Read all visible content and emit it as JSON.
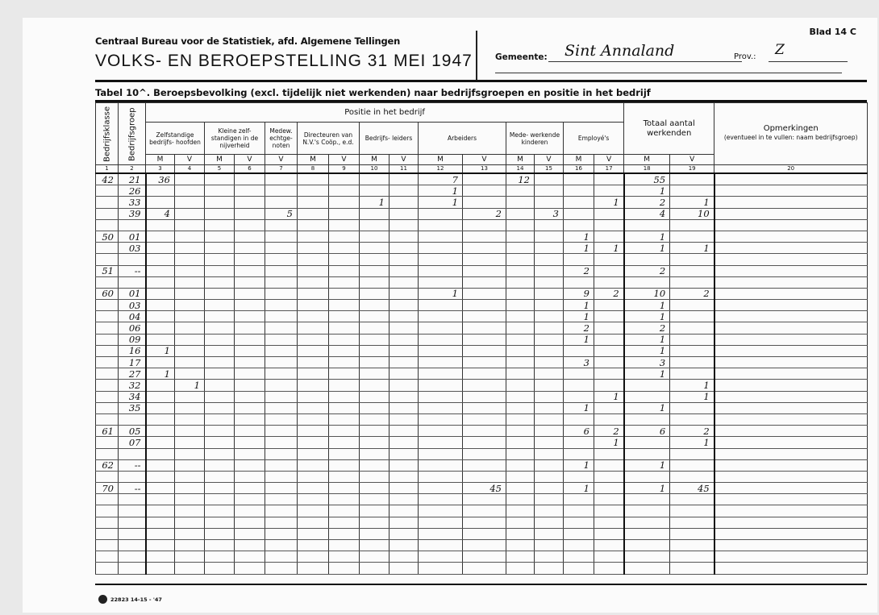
{
  "header": {
    "organisation": "Centraal Bureau voor de Statistiek, afd. Algemene Tellingen",
    "title": "VOLKS- EN BEROEPSTELLING 31 MEI 1947",
    "sheet": "Blad 14 C",
    "gemeente_label": "Gemeente:",
    "gemeente_value": "Sint Annaland",
    "prov_label": "Prov.:",
    "prov_value": "Z",
    "table_title": "Tabel 10^.  Beroepsbevolking (excl. tijdelijk niet werkenden) naar bedrijfsgroepen en positie in het bedrijf"
  },
  "columns": {
    "bedrijfsklasse": "Bedrijfsklasse",
    "bedrijfsgroep": "Bedrijfsgroep",
    "positie": "Positie in het bedrijf",
    "groups": [
      "Zelfstandige bedrijfs- hoofden",
      "Kleine zelf- standigen in de nijverheid",
      "Medew. echtge- noten",
      "Directeuren van N.V.'s Coöp., e.d.",
      "Bedrijfs- leiders",
      "Arbeiders",
      "Mede- werkende kinderen",
      "Employé's"
    ],
    "totaal": "Totaal aantal werkenden",
    "opmerkingen": "Opmerkingen",
    "opmerkingen_sub": "(eventueel in te vullen: naam bedrijfsgroep)",
    "sex": [
      "M",
      "V",
      "M",
      "V",
      "V",
      "M",
      "V",
      "M",
      "V",
      "M",
      "V",
      "M",
      "V",
      "M",
      "V",
      "M",
      "V"
    ],
    "numbers": [
      "1",
      "2",
      "3",
      "4",
      "5",
      "6",
      "7",
      "8",
      "9",
      "10",
      "11",
      "12",
      "13",
      "14",
      "15",
      "16",
      "17",
      "18",
      "19",
      "20"
    ]
  },
  "rows": [
    {
      "k": "42",
      "g": "21",
      "v": [
        "36",
        "",
        "",
        "",
        "",
        "",
        "",
        "",
        "",
        "7",
        "",
        "12",
        "",
        "",
        "",
        "55",
        ""
      ]
    },
    {
      "k": "",
      "g": "26",
      "v": [
        "",
        "",
        "",
        "",
        "",
        "",
        "",
        "",
        "",
        "1",
        "",
        "",
        "",
        "",
        "",
        "1",
        ""
      ]
    },
    {
      "k": "",
      "g": "33",
      "v": [
        "",
        "",
        "",
        "",
        "",
        "",
        "",
        "1",
        "",
        "1",
        "",
        "",
        "",
        "",
        "1",
        "2",
        "1"
      ]
    },
    {
      "k": "",
      "g": "39",
      "v": [
        "4",
        "",
        "",
        "",
        "5",
        "",
        "",
        "",
        "",
        "",
        "2",
        "",
        "3",
        "",
        "",
        "4",
        "10"
      ]
    },
    {
      "k": "",
      "g": "",
      "v": []
    },
    {
      "k": "50",
      "g": "01",
      "v": [
        "",
        "",
        "",
        "",
        "",
        "",
        "",
        "",
        "",
        "",
        "",
        "",
        "",
        "1",
        "",
        "1",
        ""
      ]
    },
    {
      "k": "",
      "g": "03",
      "v": [
        "",
        "",
        "",
        "",
        "",
        "",
        "",
        "",
        "",
        "",
        "",
        "",
        "",
        "1",
        "1",
        "1",
        "1"
      ]
    },
    {
      "k": "",
      "g": "",
      "v": []
    },
    {
      "k": "51",
      "g": "--",
      "v": [
        "",
        "",
        "",
        "",
        "",
        "",
        "",
        "",
        "",
        "",
        "",
        "",
        "",
        "2",
        "",
        "2",
        ""
      ]
    },
    {
      "k": "",
      "g": "",
      "v": []
    },
    {
      "k": "60",
      "g": "01",
      "v": [
        "",
        "",
        "",
        "",
        "",
        "",
        "",
        "",
        "",
        "1",
        "",
        "",
        "",
        "9",
        "2",
        "10",
        "2"
      ]
    },
    {
      "k": "",
      "g": "03",
      "v": [
        "",
        "",
        "",
        "",
        "",
        "",
        "",
        "",
        "",
        "",
        "",
        "",
        "",
        "1",
        "",
        "1",
        ""
      ]
    },
    {
      "k": "",
      "g": "04",
      "v": [
        "",
        "",
        "",
        "",
        "",
        "",
        "",
        "",
        "",
        "",
        "",
        "",
        "",
        "1",
        "",
        "1",
        ""
      ]
    },
    {
      "k": "",
      "g": "06",
      "v": [
        "",
        "",
        "",
        "",
        "",
        "",
        "",
        "",
        "",
        "",
        "",
        "",
        "",
        "2",
        "",
        "2",
        ""
      ]
    },
    {
      "k": "",
      "g": "09",
      "v": [
        "",
        "",
        "",
        "",
        "",
        "",
        "",
        "",
        "",
        "",
        "",
        "",
        "",
        "1",
        "",
        "1",
        ""
      ]
    },
    {
      "k": "",
      "g": "16",
      "v": [
        "1",
        "",
        "",
        "",
        "",
        "",
        "",
        "",
        "",
        "",
        "",
        "",
        "",
        "",
        "",
        "1",
        ""
      ]
    },
    {
      "k": "",
      "g": "17",
      "v": [
        "",
        "",
        "",
        "",
        "",
        "",
        "",
        "",
        "",
        "",
        "",
        "",
        "",
        "3",
        "",
        "3",
        ""
      ]
    },
    {
      "k": "",
      "g": "27",
      "v": [
        "1",
        "",
        "",
        "",
        "",
        "",
        "",
        "",
        "",
        "",
        "",
        "",
        "",
        "",
        "",
        "1",
        ""
      ]
    },
    {
      "k": "",
      "g": "32",
      "v": [
        "",
        "1",
        "",
        "",
        "",
        "",
        "",
        "",
        "",
        "",
        "",
        "",
        "",
        "",
        "",
        "",
        "1"
      ]
    },
    {
      "k": "",
      "g": "34",
      "v": [
        "",
        "",
        "",
        "",
        "",
        "",
        "",
        "",
        "",
        "",
        "",
        "",
        "",
        "",
        "1",
        "",
        "1"
      ]
    },
    {
      "k": "",
      "g": "35",
      "v": [
        "",
        "",
        "",
        "",
        "",
        "",
        "",
        "",
        "",
        "",
        "",
        "",
        "",
        "1",
        "",
        "1",
        ""
      ]
    },
    {
      "k": "",
      "g": "",
      "v": []
    },
    {
      "k": "61",
      "g": "05",
      "v": [
        "",
        "",
        "",
        "",
        "",
        "",
        "",
        "",
        "",
        "",
        "",
        "",
        "",
        "6",
        "2",
        "6",
        "2"
      ]
    },
    {
      "k": "",
      "g": "07",
      "v": [
        "",
        "",
        "",
        "",
        "",
        "",
        "",
        "",
        "",
        "",
        "",
        "",
        "",
        "",
        "1",
        "",
        "1"
      ]
    },
    {
      "k": "",
      "g": "",
      "v": []
    },
    {
      "k": "62",
      "g": "--",
      "v": [
        "",
        "",
        "",
        "",
        "",
        "",
        "",
        "",
        "",
        "",
        "",
        "",
        "",
        "1",
        "",
        "1",
        ""
      ]
    },
    {
      "k": "",
      "g": "",
      "v": []
    },
    {
      "k": "70",
      "g": "--",
      "v": [
        "",
        "",
        "",
        "",
        "",
        "",
        "",
        "",
        "",
        "",
        "45",
        "",
        "",
        "1",
        "",
        "1",
        "45"
      ]
    }
  ],
  "footer": {
    "print_code": "22823 14-15 - '47"
  }
}
